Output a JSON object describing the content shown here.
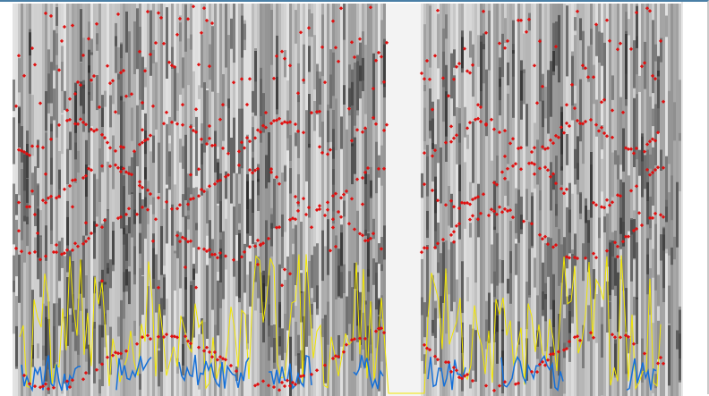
{
  "app": {
    "view": "spectrogram",
    "colors": {
      "background": "#ffffff",
      "spectrogram_dark": "#1a1a1a",
      "formant": "#e01010",
      "intensity": "#f2e600",
      "pitch": "#1570d8",
      "frame_border": "#4a7fa6"
    }
  },
  "chart_data": {
    "type": "heatmap",
    "title": "",
    "xlabel": "",
    "ylabel": "",
    "grid": false,
    "legend": "none",
    "x_range": [
      0,
      1
    ],
    "y_range": [
      0,
      1
    ],
    "series": [
      {
        "kind": "formant",
        "style": "dots",
        "color": "#e01010"
      },
      {
        "kind": "intensity",
        "style": "line",
        "color": "#f2e600"
      },
      {
        "kind": "pitch",
        "style": "line",
        "color": "#1570d8"
      }
    ]
  }
}
